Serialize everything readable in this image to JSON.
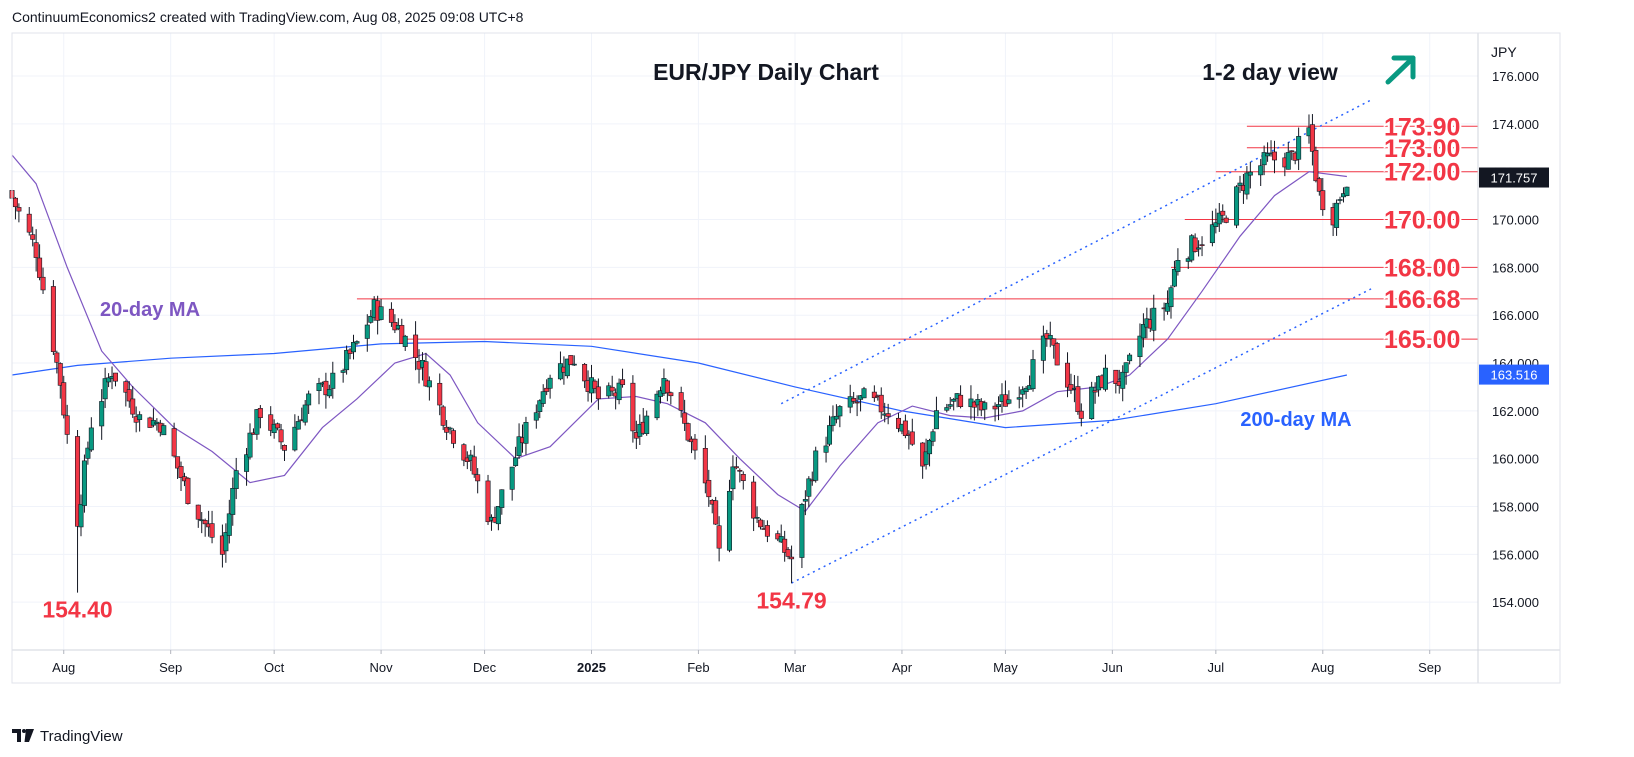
{
  "header": {
    "credit": "ContinuumEconomics2 created with TradingView.com, Aug 08, 2025 09:08 UTC+8"
  },
  "footer": {
    "brand": "TradingView"
  },
  "chart_data": {
    "type": "candlestick",
    "title": "EUR/JPY Daily Chart",
    "view_label": "1-2 day view",
    "view_arrow": "up-right",
    "currency_label": "JPY",
    "ylim": [
      152.0,
      177.8
    ],
    "y_ticks": [
      "176.000",
      "174.000",
      "172.000",
      "170.000",
      "168.000",
      "166.000",
      "164.000",
      "162.000",
      "160.000",
      "158.000",
      "156.000",
      "154.000"
    ],
    "x_ticks": [
      "Aug",
      "Sep",
      "Oct",
      "Nov",
      "Dec",
      "2025",
      "Feb",
      "Mar",
      "Apr",
      "May",
      "Jun",
      "Jul",
      "Aug",
      "Sep"
    ],
    "x_tick_dates": [
      "2024-08-01",
      "2024-09-01",
      "2024-10-01",
      "2024-11-01",
      "2024-12-01",
      "2025-01-01",
      "2025-02-01",
      "2025-03-01",
      "2025-04-01",
      "2025-05-01",
      "2025-06-01",
      "2025-07-01",
      "2025-08-01",
      "2025-09-01"
    ],
    "xlim": [
      "2024-07-17",
      "2025-09-15"
    ],
    "last_price": "171.757",
    "ma200_last": "163.516",
    "colors": {
      "up": "#089981",
      "down": "#f23645",
      "ma20": "#7e57c2",
      "ma200": "#2962ff",
      "level": "#f23645",
      "arrow": "#089981",
      "badge": "#22ab94"
    },
    "moving_averages": [
      {
        "name": "20-day MA",
        "color": "#7e57c2"
      },
      {
        "name": "200-day MA",
        "color": "#2962ff"
      }
    ],
    "key_lows": [
      {
        "label": "154.40",
        "date": "2024-08-05",
        "price": 154.4
      },
      {
        "label": "154.79",
        "date": "2025-02-28",
        "price": 154.79
      }
    ],
    "levels": [
      {
        "label": "173.90",
        "price": 173.9,
        "from": "2025-07-10"
      },
      {
        "label": "173.00",
        "price": 173.0,
        "from": "2025-07-10"
      },
      {
        "label": "172.00",
        "price": 172.0,
        "from": "2025-07-01"
      },
      {
        "label": "170.00",
        "price": 170.0,
        "from": "2025-06-22"
      },
      {
        "label": "168.00",
        "price": 168.0,
        "from": "2025-06-18"
      },
      {
        "label": "166.68",
        "price": 166.68,
        "from": "2024-10-25"
      },
      {
        "label": "165.00",
        "price": 165.0,
        "from": "2024-11-08"
      }
    ],
    "channel": [
      {
        "name": "upper",
        "from": {
          "date": "2025-02-25",
          "price": 162.3
        },
        "to": {
          "date": "2025-08-15",
          "price": 175.0
        }
      },
      {
        "name": "lower",
        "from": {
          "date": "2025-02-28",
          "price": 154.8
        },
        "to": {
          "date": "2025-08-15",
          "price": 167.1
        }
      }
    ],
    "anchors": [
      [
        "2024-07-17",
        170.9
      ],
      [
        "2024-07-24",
        168.7
      ],
      [
        "2024-07-31",
        163.2
      ],
      [
        "2024-08-05",
        157.5
      ],
      [
        "2024-08-09",
        161.5
      ],
      [
        "2024-08-15",
        163.7
      ],
      [
        "2024-08-23",
        161.7
      ],
      [
        "2024-08-29",
        161.5
      ],
      [
        "2024-09-06",
        158.5
      ],
      [
        "2024-09-16",
        156.0
      ],
      [
        "2024-09-20",
        159.5
      ],
      [
        "2024-09-27",
        162.0
      ],
      [
        "2024-10-04",
        160.5
      ],
      [
        "2024-10-11",
        162.5
      ],
      [
        "2024-10-18",
        163.2
      ],
      [
        "2024-10-25",
        164.8
      ],
      [
        "2024-10-30",
        166.3
      ],
      [
        "2024-11-06",
        165.5
      ],
      [
        "2024-11-13",
        163.8
      ],
      [
        "2024-11-20",
        161.5
      ],
      [
        "2024-11-27",
        159.8
      ],
      [
        "2024-12-03",
        157.3
      ],
      [
        "2024-12-11",
        160.5
      ],
      [
        "2024-12-20",
        163.6
      ],
      [
        "2024-12-27",
        164.2
      ],
      [
        "2025-01-03",
        162.5
      ],
      [
        "2025-01-10",
        162.8
      ],
      [
        "2025-01-14",
        160.8
      ],
      [
        "2025-01-22",
        163.5
      ],
      [
        "2025-01-29",
        161.0
      ],
      [
        "2025-02-04",
        158.5
      ],
      [
        "2025-02-07",
        156.0
      ],
      [
        "2025-02-11",
        160.0
      ],
      [
        "2025-02-18",
        157.5
      ],
      [
        "2025-02-24",
        156.5
      ],
      [
        "2025-02-28",
        155.8
      ],
      [
        "2025-03-04",
        158.5
      ],
      [
        "2025-03-07",
        160.0
      ],
      [
        "2025-03-14",
        162.0
      ],
      [
        "2025-03-21",
        162.5
      ],
      [
        "2025-03-28",
        162.0
      ],
      [
        "2025-04-03",
        161.0
      ],
      [
        "2025-04-07",
        159.5
      ],
      [
        "2025-04-11",
        162.0
      ],
      [
        "2025-04-18",
        162.5
      ],
      [
        "2025-04-25",
        162.0
      ],
      [
        "2025-05-02",
        162.5
      ],
      [
        "2025-05-08",
        163.5
      ],
      [
        "2025-05-13",
        165.0
      ],
      [
        "2025-05-20",
        163.0
      ],
      [
        "2025-05-23",
        162.0
      ],
      [
        "2025-05-30",
        163.5
      ],
      [
        "2025-06-04",
        163.2
      ],
      [
        "2025-06-10",
        165.5
      ],
      [
        "2025-06-17",
        166.5
      ],
      [
        "2025-06-20",
        168.5
      ],
      [
        "2025-06-27",
        169.2
      ],
      [
        "2025-07-03",
        170.0
      ],
      [
        "2025-07-10",
        171.8
      ],
      [
        "2025-07-16",
        172.5
      ],
      [
        "2025-07-23",
        172.6
      ],
      [
        "2025-07-28",
        173.7
      ],
      [
        "2025-07-31",
        171.0
      ],
      [
        "2025-08-04",
        170.2
      ],
      [
        "2025-08-08",
        171.8
      ]
    ],
    "ma20_path": [
      [
        "2024-07-17",
        172.7
      ],
      [
        "2024-07-24",
        171.5
      ],
      [
        "2024-08-02",
        168.0
      ],
      [
        "2024-08-12",
        164.5
      ],
      [
        "2024-08-21",
        163.0
      ],
      [
        "2024-09-02",
        161.3
      ],
      [
        "2024-09-13",
        160.3
      ],
      [
        "2024-09-24",
        159.0
      ],
      [
        "2024-10-04",
        159.3
      ],
      [
        "2024-10-15",
        161.3
      ],
      [
        "2024-10-25",
        162.5
      ],
      [
        "2024-11-05",
        164.0
      ],
      [
        "2024-11-14",
        164.4
      ],
      [
        "2024-11-21",
        163.5
      ],
      [
        "2024-11-29",
        161.5
      ],
      [
        "2024-12-10",
        160.0
      ],
      [
        "2024-12-20",
        160.5
      ],
      [
        "2025-01-03",
        162.5
      ],
      [
        "2025-01-14",
        162.6
      ],
      [
        "2025-01-23",
        162.3
      ],
      [
        "2025-02-03",
        161.5
      ],
      [
        "2025-02-13",
        160.0
      ],
      [
        "2025-02-24",
        158.5
      ],
      [
        "2025-03-04",
        157.8
      ],
      [
        "2025-03-14",
        159.7
      ],
      [
        "2025-03-25",
        161.5
      ],
      [
        "2025-04-04",
        162.2
      ],
      [
        "2025-04-15",
        161.8
      ],
      [
        "2025-04-25",
        161.7
      ],
      [
        "2025-05-06",
        162.0
      ],
      [
        "2025-05-16",
        162.8
      ],
      [
        "2025-05-28",
        163.0
      ],
      [
        "2025-06-06",
        163.5
      ],
      [
        "2025-06-17",
        165.0
      ],
      [
        "2025-06-27",
        167.0
      ],
      [
        "2025-07-08",
        169.3
      ],
      [
        "2025-07-18",
        171.0
      ],
      [
        "2025-07-28",
        172.0
      ],
      [
        "2025-08-08",
        171.8
      ]
    ],
    "ma200_path": [
      [
        "2024-07-17",
        163.5
      ],
      [
        "2024-08-05",
        163.9
      ],
      [
        "2024-09-01",
        164.2
      ],
      [
        "2024-10-01",
        164.4
      ],
      [
        "2024-11-01",
        164.8
      ],
      [
        "2024-12-01",
        164.9
      ],
      [
        "2025-01-01",
        164.7
      ],
      [
        "2025-02-01",
        164.0
      ],
      [
        "2025-03-01",
        163.0
      ],
      [
        "2025-04-01",
        162.0
      ],
      [
        "2025-05-01",
        161.3
      ],
      [
        "2025-06-01",
        161.6
      ],
      [
        "2025-07-01",
        162.3
      ],
      [
        "2025-08-08",
        163.5
      ]
    ]
  }
}
